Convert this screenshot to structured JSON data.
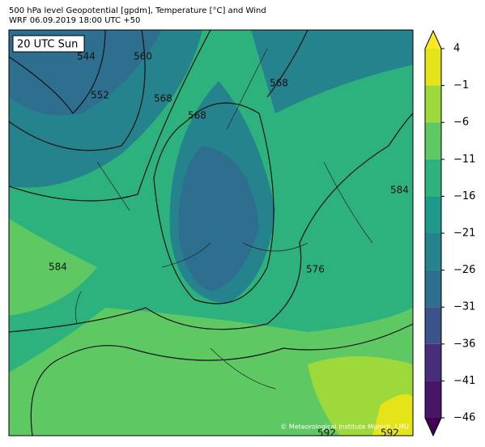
{
  "title": "500 hPa level Geopotential [gpdm], Temperature [°C] and Wind",
  "subtitle": "WRF 06.09.2019 18:00 UTC +50",
  "time_label": "20 UTC Sun",
  "credit": "© Meteorological Institute Munich, LMU",
  "contours": [
    544,
    552,
    560,
    568,
    568,
    568,
    576,
    584,
    584,
    592,
    592
  ],
  "colorbar": {
    "lim": [
      -46,
      4
    ],
    "ticks": [
      {
        "value": 4,
        "label": "4"
      },
      {
        "value": -1,
        "label": "−1"
      },
      {
        "value": -6,
        "label": "−6"
      },
      {
        "value": -11,
        "label": "−11"
      },
      {
        "value": -16,
        "label": "−16"
      },
      {
        "value": -21,
        "label": "−21"
      },
      {
        "value": -26,
        "label": "−26"
      },
      {
        "value": -31,
        "label": "−31"
      },
      {
        "value": -36,
        "label": "−36"
      },
      {
        "value": -41,
        "label": "−41"
      },
      {
        "value": -46,
        "label": "−46"
      }
    ],
    "colors": [
      "#e5e419",
      "#9dd93b",
      "#5ec962",
      "#2db27d",
      "#1f9a8a",
      "#25838e",
      "#2e6e8e",
      "#3b528b",
      "#472d7b",
      "#481668"
    ],
    "extend_colors": [
      "#fde725",
      "#440154"
    ]
  }
}
